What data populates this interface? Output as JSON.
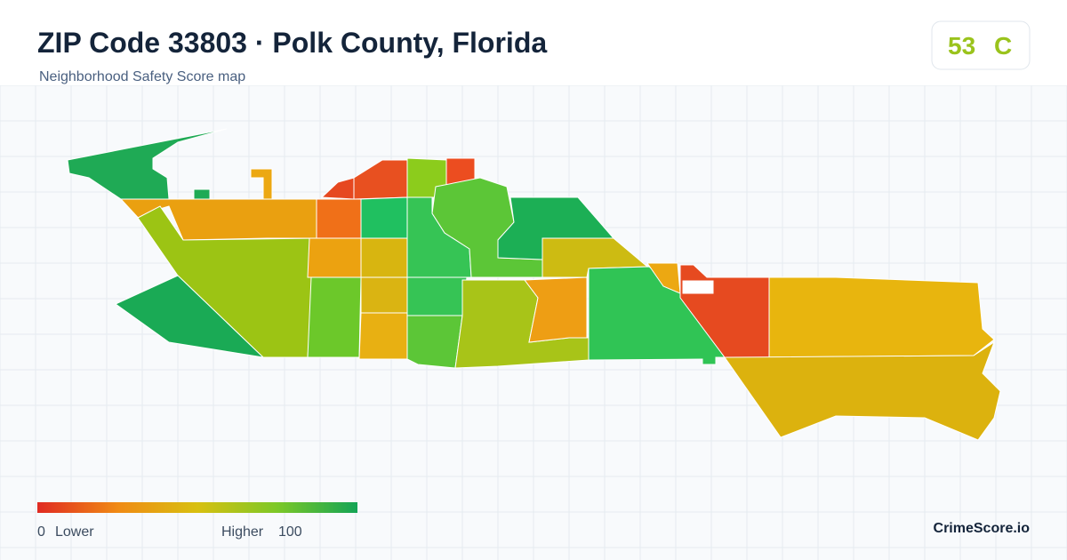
{
  "header": {
    "title": "ZIP Code 33803 · Polk County, Florida",
    "subtitle": "Neighborhood Safety Score map"
  },
  "score": {
    "value": 53,
    "grade": "C"
  },
  "legend": {
    "min": 0,
    "min_label": "Lower",
    "max_label": "Higher",
    "max": 100
  },
  "brand": "CrimeScore.io"
}
